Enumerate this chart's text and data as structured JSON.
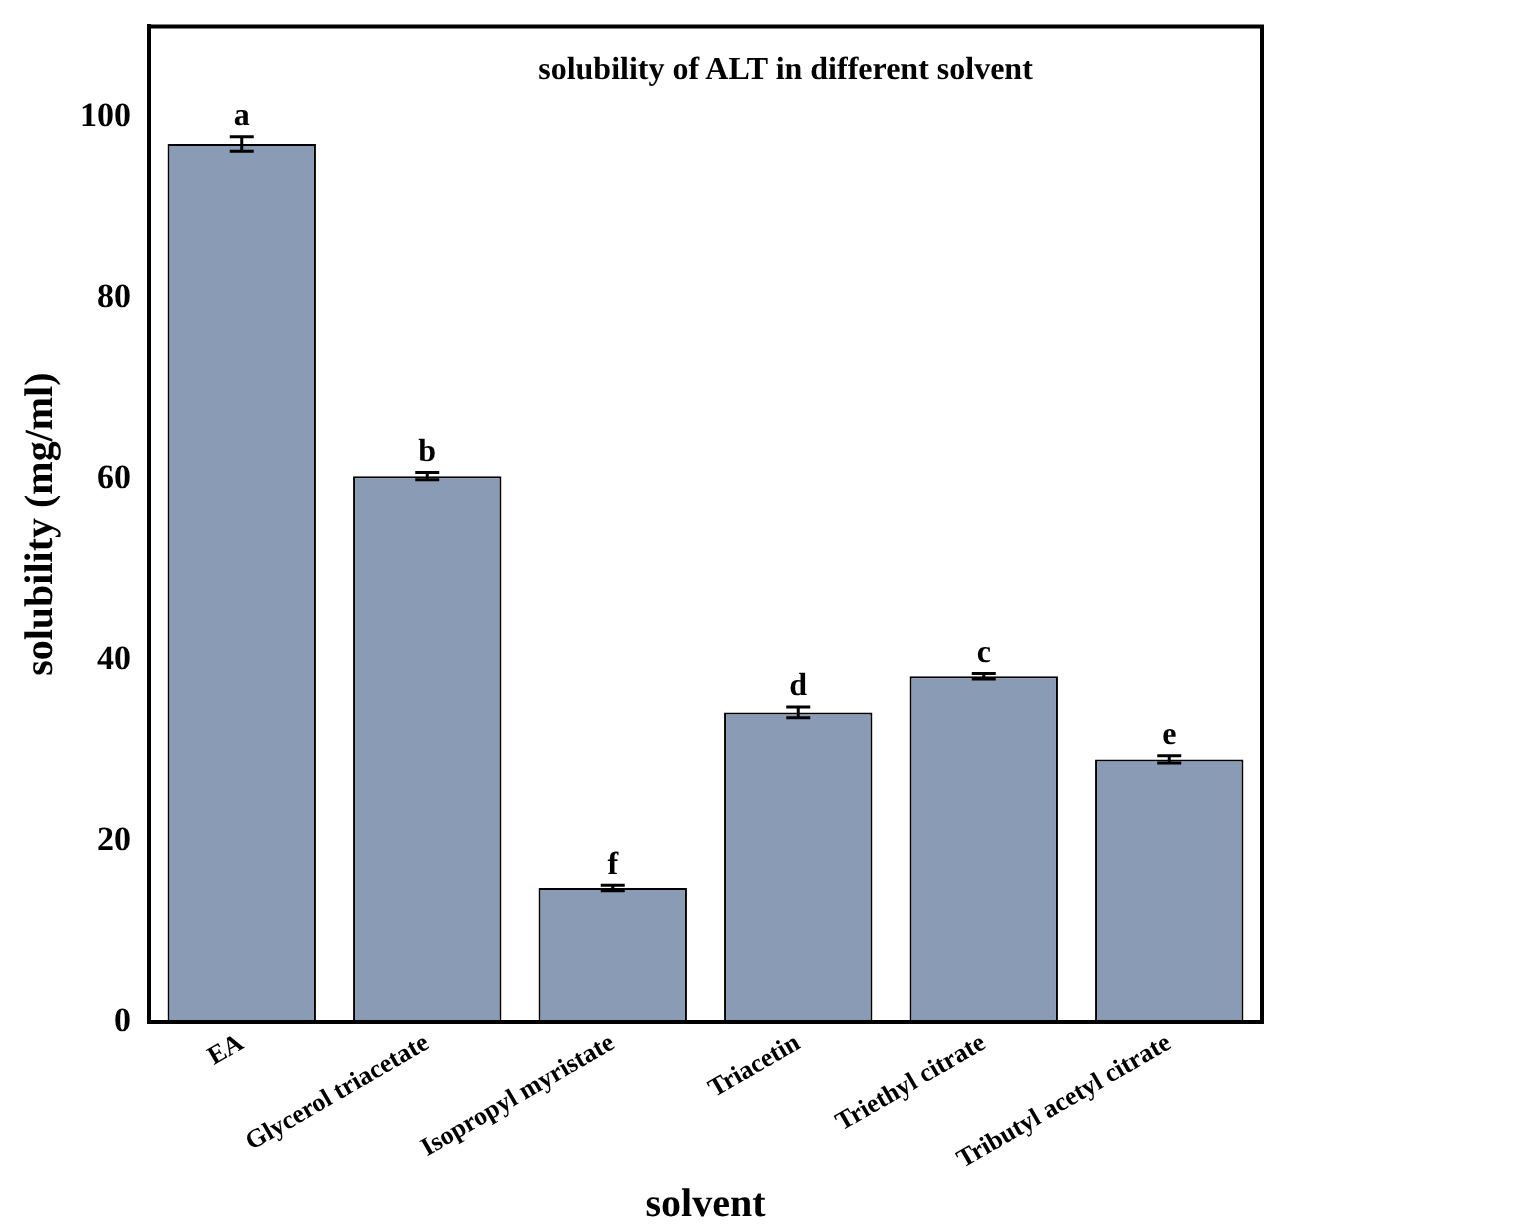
{
  "chart_data": {
    "type": "bar",
    "title": "solubility of ALT in different solvent",
    "xlabel": "solvent",
    "ylabel": "solubility (mg/ml)",
    "categories": [
      "EA",
      "Glycerol triacetate",
      "Isopropyl myristate",
      "Triacetin",
      "Triethyl citrate",
      "Tributyl acetyl citrate"
    ],
    "values": [
      97,
      60.3,
      14.8,
      34.2,
      38.2,
      29
    ],
    "errors": [
      0.8,
      0.4,
      0.3,
      0.6,
      0.3,
      0.4
    ],
    "color": "#8a9bb5",
    "ylim": [
      0,
      110
    ],
    "yticks": [
      0,
      20,
      40,
      60,
      80,
      100
    ],
    "grid": false,
    "legend": false,
    "annotations": [
      {
        "text": "a",
        "x": "EA",
        "y": 97.8
      },
      {
        "text": "b",
        "x": "Glycerol triacetate",
        "y": 60.7
      },
      {
        "text": "f",
        "x": "Isopropyl myristate",
        "y": 15.1
      },
      {
        "text": "d",
        "x": "Triacetin",
        "y": 34.8
      },
      {
        "text": "c",
        "x": "Triethyl citrate",
        "y": 38.5
      },
      {
        "text": "e",
        "x": "Tributyl acetyl citrate",
        "y": 29.4
      }
    ]
  }
}
